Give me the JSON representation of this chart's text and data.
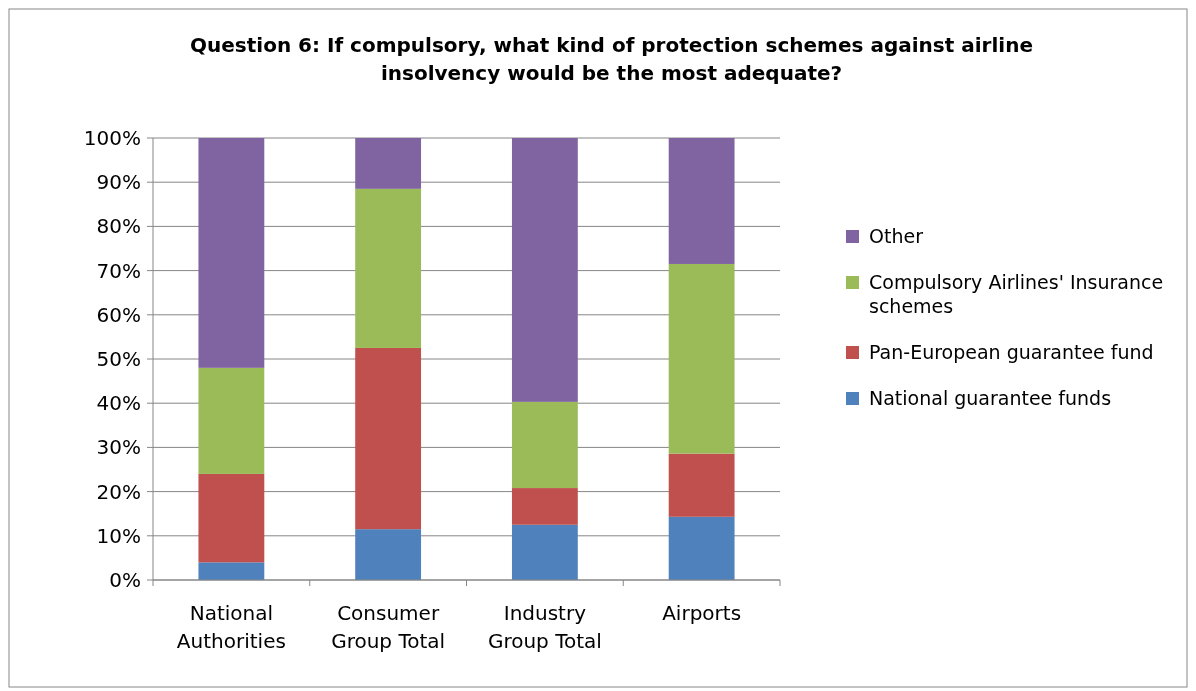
{
  "chart_data": {
    "type": "bar",
    "stacked": true,
    "title": "Question 6: If compulsory, what kind of protection schemes against airline insolvency would be the most adequate?",
    "categories": [
      "National Authorities",
      "Consumer Group Total",
      "Industry Group Total",
      "Airports"
    ],
    "series": [
      {
        "name": "National guarantee funds",
        "color": "#4f81bd",
        "values": [
          4,
          11.5,
          12.5,
          14.3
        ]
      },
      {
        "name": "Pan-European guarantee fund",
        "color": "#c0504d",
        "values": [
          20,
          41,
          8.3,
          14.3
        ]
      },
      {
        "name": "Compulsory Airlines' Insurance schemes",
        "color": "#9bbb59",
        "values": [
          24,
          36,
          19.5,
          42.9
        ]
      },
      {
        "name": "Other",
        "color": "#8064a2",
        "values": [
          52,
          11.5,
          59.7,
          28.5
        ]
      }
    ],
    "ylim": [
      0,
      100
    ],
    "yticks": [
      {
        "value": 0,
        "label": "0%"
      },
      {
        "value": 10,
        "label": "10%"
      },
      {
        "value": 20,
        "label": "20%"
      },
      {
        "value": 30,
        "label": "30%"
      },
      {
        "value": 40,
        "label": "40%"
      },
      {
        "value": 50,
        "label": "50%"
      },
      {
        "value": 60,
        "label": "60%"
      },
      {
        "value": 70,
        "label": "70%"
      },
      {
        "value": 80,
        "label": "80%"
      },
      {
        "value": 90,
        "label": "90%"
      },
      {
        "value": 100,
        "label": "100%"
      }
    ],
    "grid": "y",
    "legend": "right"
  }
}
